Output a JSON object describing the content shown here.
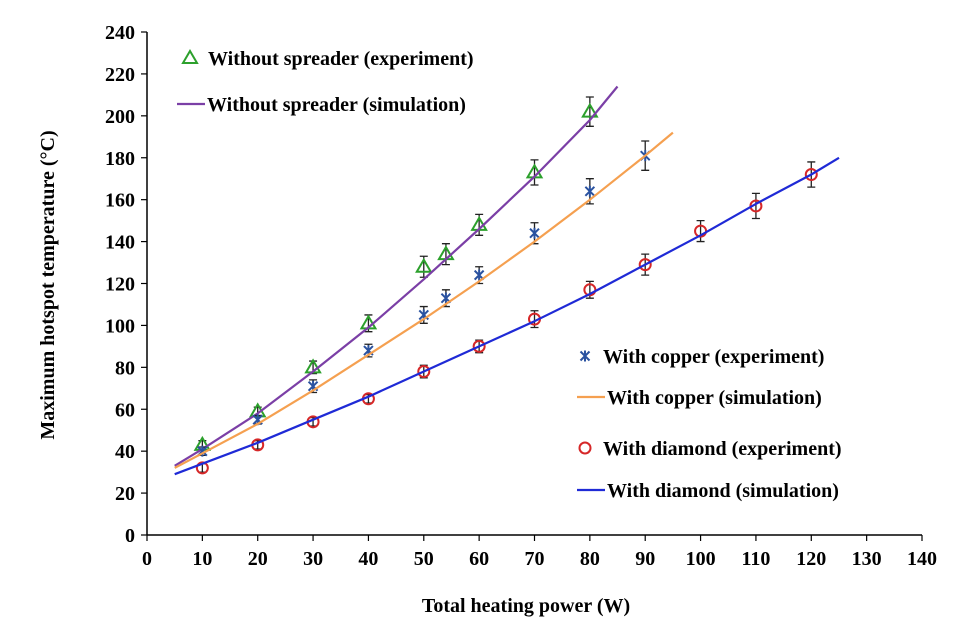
{
  "chart_data": {
    "type": "scatter",
    "xlabel": "Total heating power  (W)",
    "ylabel": "Maximum hotspot temperature  (°C)",
    "xlim": [
      0,
      140
    ],
    "ylim": [
      0,
      240
    ],
    "x_ticks": [
      0,
      10,
      20,
      30,
      40,
      50,
      60,
      70,
      80,
      90,
      100,
      110,
      120,
      130,
      140
    ],
    "y_ticks": [
      0,
      20,
      40,
      60,
      80,
      100,
      120,
      140,
      160,
      180,
      200,
      220,
      240
    ],
    "grid": false,
    "series": [
      {
        "name": "Without spreader (experiment)",
        "kind": "markers",
        "marker": "triangle",
        "color": "#2ca02c",
        "x": [
          10,
          20,
          30,
          40,
          50,
          54,
          60,
          70,
          80
        ],
        "y": [
          43,
          59,
          80,
          101,
          128,
          134,
          148,
          173,
          202
        ],
        "error": [
          2,
          2,
          3,
          4,
          5,
          5,
          5,
          6,
          7
        ]
      },
      {
        "name": "Without spreader (simulation)",
        "kind": "line",
        "color": "#7b3fa6",
        "x": [
          5,
          10,
          20,
          30,
          40,
          50,
          60,
          70,
          80,
          85
        ],
        "y": [
          33,
          41,
          58,
          78,
          99,
          122,
          146,
          171,
          198,
          214
        ]
      },
      {
        "name": "With copper (experiment)",
        "kind": "markers",
        "marker": "star",
        "color": "#2a52a0",
        "x": [
          10,
          20,
          30,
          40,
          50,
          54,
          60,
          70,
          80,
          90
        ],
        "y": [
          40,
          55,
          71,
          88,
          105,
          113,
          124,
          144,
          164,
          181
        ],
        "error": [
          2,
          2,
          3,
          3,
          4,
          4,
          4,
          5,
          6,
          7
        ]
      },
      {
        "name": "With copper (simulation)",
        "kind": "line",
        "color": "#f5a050",
        "x": [
          5,
          10,
          20,
          30,
          40,
          50,
          60,
          70,
          80,
          90,
          95
        ],
        "y": [
          32,
          39,
          53,
          69,
          86,
          103,
          121,
          140,
          160,
          181,
          192
        ]
      },
      {
        "name": "With diamond (experiment)",
        "kind": "markers",
        "marker": "circle",
        "color": "#d62728",
        "x": [
          10,
          20,
          30,
          40,
          50,
          60,
          70,
          80,
          90,
          100,
          110,
          120
        ],
        "y": [
          32,
          43,
          54,
          65,
          78,
          90,
          103,
          117,
          129,
          145,
          157,
          172
        ],
        "error": [
          2,
          2,
          2,
          2,
          3,
          3,
          4,
          4,
          5,
          5,
          6,
          6
        ]
      },
      {
        "name": "With diamond (simulation)",
        "kind": "line",
        "color": "#1f2ad6",
        "x": [
          5,
          10,
          20,
          30,
          40,
          50,
          60,
          70,
          80,
          90,
          100,
          110,
          120,
          125
        ],
        "y": [
          29,
          34,
          44,
          55,
          66,
          78,
          90,
          102,
          115,
          129,
          143,
          158,
          172,
          180
        ]
      }
    ],
    "legend": [
      {
        "series": 0,
        "label": "Without spreader (experiment)"
      },
      {
        "series": 1,
        "label": "Without spreader (simulation)"
      },
      {
        "series": 2,
        "label": "With copper (experiment)"
      },
      {
        "series": 3,
        "label": "With copper (simulation)"
      },
      {
        "series": 4,
        "label": "With diamond (experiment)"
      },
      {
        "series": 5,
        "label": "With diamond (simulation)"
      }
    ]
  }
}
